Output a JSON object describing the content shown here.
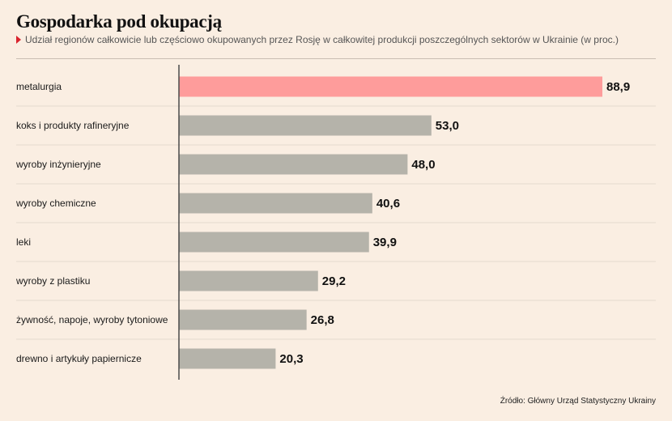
{
  "header": {
    "title": "Gospodarka pod okupacją",
    "subtitle": "Udział regionów całkowicie lub częściowo okupowanych przez Rosję w całkowitej produkcji poszczególnych sektorów w Ukrainie (w proc.)",
    "subtitle_marker": "red-triangle-icon"
  },
  "footer": {
    "source": "Źródło: Główny Urząd Statystyczny Ukrainy"
  },
  "colors": {
    "background": "#faeee2",
    "highlight": "#fe9c9b",
    "bar": "#b5b3aa",
    "axis": "#4a4a4a",
    "marker": "#d9232e"
  },
  "chart_data": {
    "type": "bar",
    "orientation": "horizontal",
    "categories": [
      "metalurgia",
      "koks i produkty rafineryjne",
      "wyroby inżynieryjne",
      "wyroby chemiczne",
      "leki",
      "wyroby z plastiku",
      "żywność, napoje, wyroby tytoniowe",
      "drewno i artykuły papiernicze"
    ],
    "values": [
      88.9,
      53.0,
      48.0,
      40.6,
      39.9,
      29.2,
      26.8,
      20.3
    ],
    "value_labels": [
      "88,9",
      "53,0",
      "48,0",
      "40,6",
      "39,9",
      "29,2",
      "26,8",
      "20,3"
    ],
    "highlight_index": 0,
    "xlim": [
      0,
      88.9
    ],
    "grid": false,
    "legend": "none",
    "title": "",
    "xlabel": "",
    "ylabel": ""
  }
}
